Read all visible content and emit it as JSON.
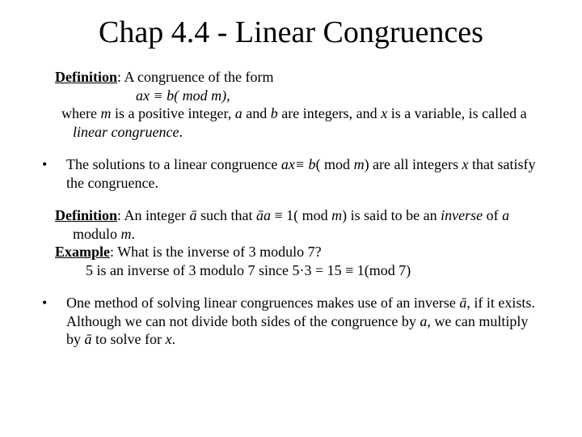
{
  "colors": {
    "background": "#ffffff",
    "text": "#000000"
  },
  "title": "Chap 4.4 - Linear Congruences",
  "def1": {
    "label": "Definition",
    "line1_after": ": A congruence of the form",
    "line2": "ax ≡ b( mod m),",
    "line3_pre": " where ",
    "m": "m",
    "line3_mid1": " is a positive integer, ",
    "a": "a",
    "line3_mid2": " and ",
    "b": "b",
    "line3_mid3": " are integers, and ",
    "x": "x",
    "line3_mid4": " is a variable, is called a ",
    "term": "linear congruence",
    "period": "."
  },
  "bullet1": {
    "pre": "The solutions to a linear congruence ",
    "expr": "ax≡ b",
    "mid": "( mod ",
    "m": "m",
    "post1": ") are  all integers ",
    "x": "x",
    "post2": " that satisfy the congruence."
  },
  "def2": {
    "label": "Definition",
    "after": ": An integer ",
    "abar1": "ā",
    "mid1": " such that ",
    "abar2": "āa",
    "mid2": " ≡ 1( mod ",
    "m": "m",
    "mid3": ") is said to be an ",
    "inverse": "inverse",
    "mid4": " of ",
    "a": "a",
    "mid5": " modulo ",
    "m2": "m",
    "end": "."
  },
  "example": {
    "label": "Example",
    "q": ":  What is the inverse of 3 modulo 7?",
    "ans": "5 is an inverse of 3 modulo 7 since 5·3 = 15 ≡ 1(mod 7)"
  },
  "bullet2": {
    "pre": "One method of solving linear congruences makes use of  an inverse ",
    "abar": "ā",
    "mid1": ", if it exists. Although we can not divide both sides of the congruence by ",
    "a": "a",
    "mid2": ", we can multiply by ",
    "abar2": "ā",
    "mid3": " to solve for ",
    "x": "x",
    "end": "."
  }
}
